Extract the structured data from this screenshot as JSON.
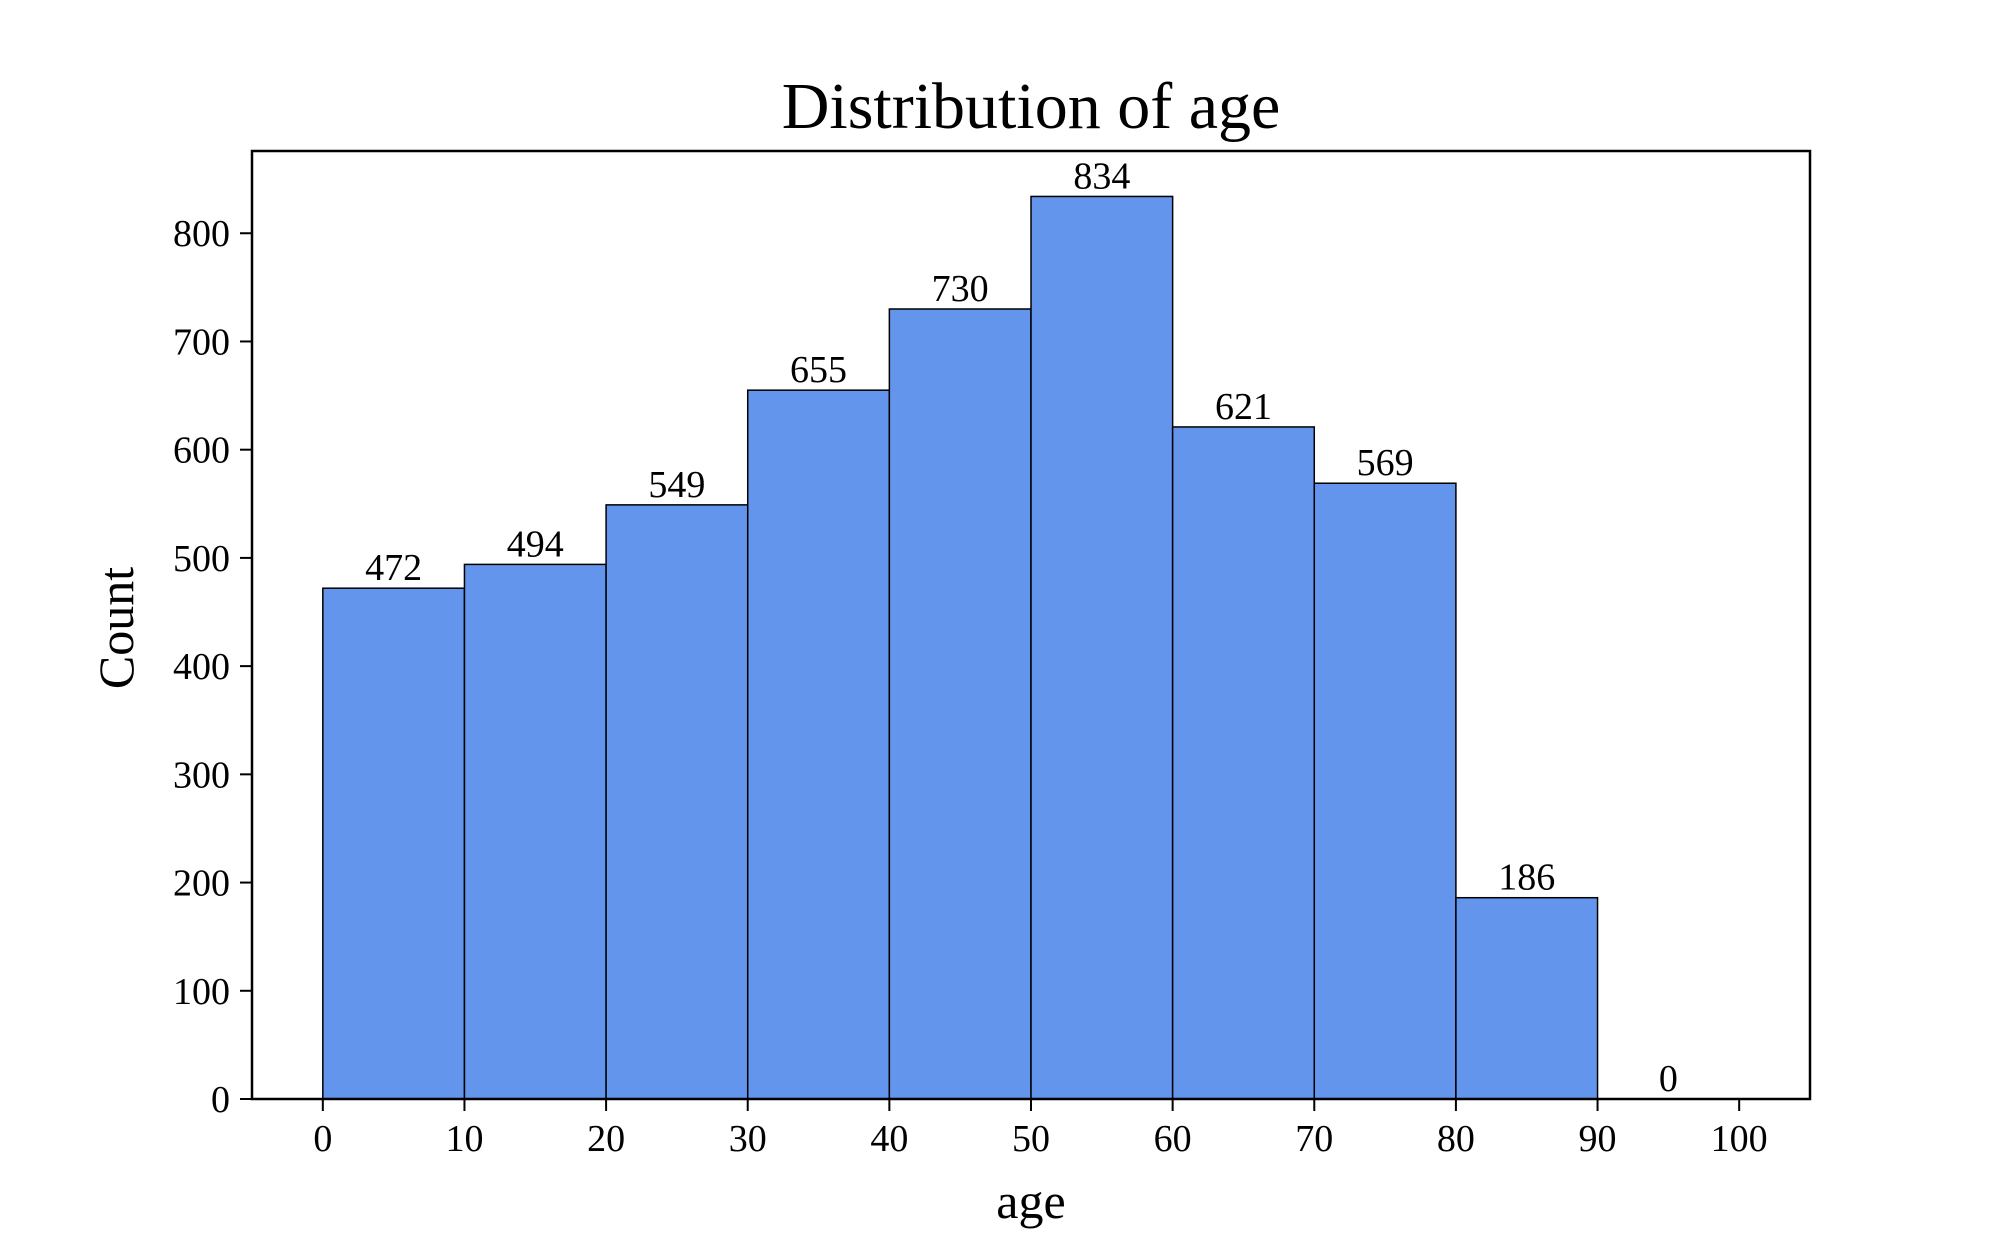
{
  "chart_data": {
    "type": "bar",
    "title": "Distribution of age",
    "xlabel": "age",
    "ylabel": "Count",
    "bins": [
      {
        "start": 0,
        "end": 10,
        "count": 472
      },
      {
        "start": 10,
        "end": 20,
        "count": 494
      },
      {
        "start": 20,
        "end": 30,
        "count": 549
      },
      {
        "start": 30,
        "end": 40,
        "count": 655
      },
      {
        "start": 40,
        "end": 50,
        "count": 730
      },
      {
        "start": 50,
        "end": 60,
        "count": 834
      },
      {
        "start": 60,
        "end": 70,
        "count": 621
      },
      {
        "start": 70,
        "end": 80,
        "count": 569
      },
      {
        "start": 80,
        "end": 90,
        "count": 186
      },
      {
        "start": 90,
        "end": 100,
        "count": 0
      }
    ],
    "xticks": [
      0,
      10,
      20,
      30,
      40,
      50,
      60,
      70,
      80,
      90,
      100
    ],
    "yticks": [
      0,
      100,
      200,
      300,
      400,
      500,
      600,
      700,
      800
    ],
    "xlim": [
      -5,
      105
    ],
    "ylim": [
      0,
      876
    ],
    "grid": false,
    "bar_color": "#6495ED",
    "edge_color": "#000000"
  }
}
